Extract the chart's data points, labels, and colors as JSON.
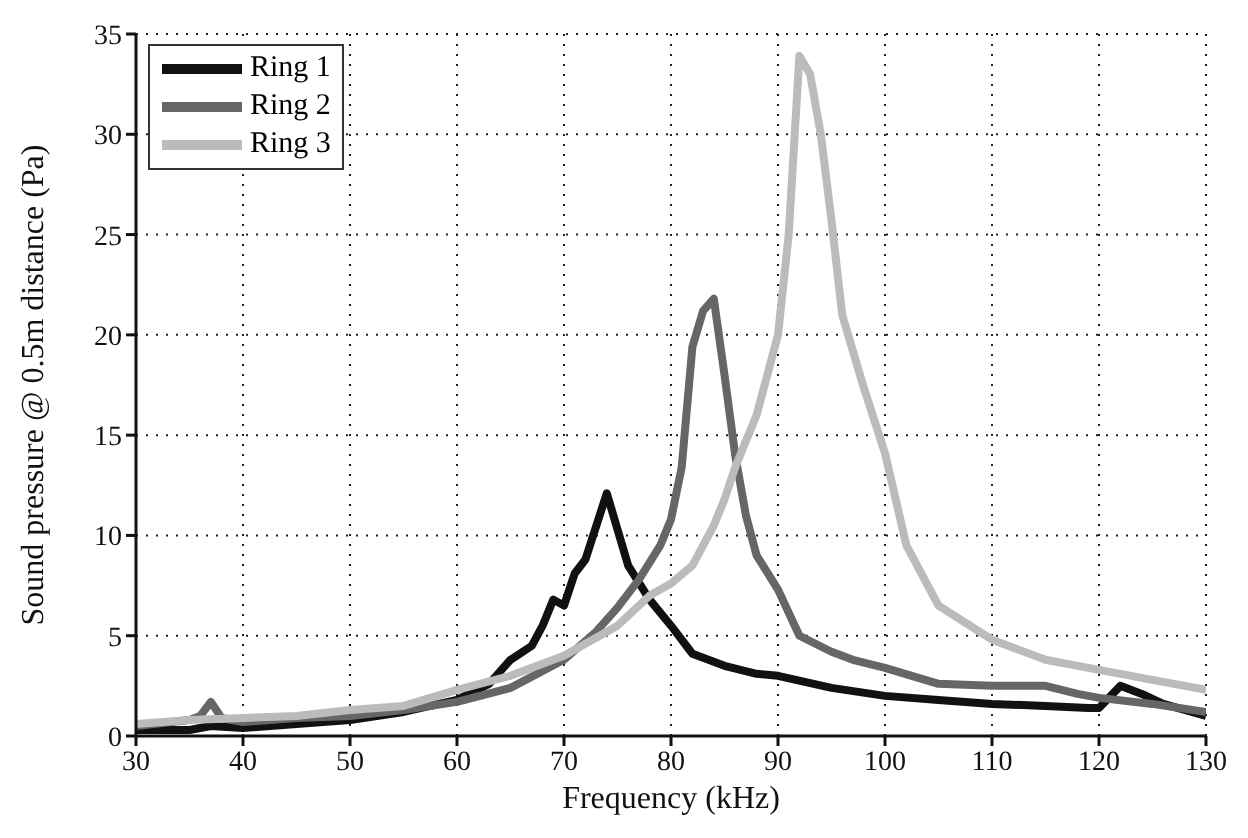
{
  "chart_data": {
    "type": "line",
    "xlabel": "Frequency (kHz)",
    "ylabel": "Sound pressure @ 0.5m distance (Pa)",
    "xlim": [
      30,
      130
    ],
    "ylim": [
      0,
      35
    ],
    "xticks": [
      30,
      40,
      50,
      60,
      70,
      80,
      90,
      100,
      110,
      120,
      130
    ],
    "yticks": [
      0,
      5,
      10,
      15,
      20,
      25,
      30,
      35
    ],
    "grid": true,
    "legend": "top left",
    "line_style": "solid",
    "marker": "none",
    "series": [
      {
        "name": "Ring 1",
        "color": "#111111",
        "x": [
          30,
          35,
          37,
          40,
          45,
          50,
          55,
          60,
          63,
          65,
          67,
          68,
          69,
          70,
          71,
          72,
          74,
          76,
          78,
          80,
          82,
          85,
          88,
          90,
          95,
          100,
          105,
          110,
          115,
          119,
          120,
          122,
          124,
          126,
          130
        ],
        "values": [
          0.3,
          0.3,
          0.5,
          0.4,
          0.6,
          0.8,
          1.2,
          1.8,
          2.6,
          3.8,
          4.5,
          5.5,
          6.8,
          6.5,
          8.1,
          8.8,
          12.1,
          8.5,
          6.8,
          5.5,
          4.1,
          3.5,
          3.1,
          3,
          2.4,
          2,
          1.8,
          1.6,
          1.5,
          1.4,
          1.4,
          2.5,
          2.1,
          1.6,
          1
        ]
      },
      {
        "name": "Ring 2",
        "color": "#666666",
        "x": [
          30,
          35,
          36,
          37,
          38,
          40,
          45,
          50,
          55,
          60,
          65,
          70,
          73,
          75,
          77,
          79,
          80,
          81,
          82,
          83,
          84,
          85,
          86,
          87,
          88,
          90,
          92,
          95,
          97,
          100,
          105,
          110,
          115,
          118,
          120,
          125,
          130
        ],
        "values": [
          0.5,
          0.8,
          1,
          1.7,
          0.9,
          0.7,
          0.9,
          1,
          1.3,
          1.7,
          2.4,
          3.8,
          5.2,
          6.4,
          7.8,
          9.5,
          10.8,
          13.4,
          19.4,
          21.2,
          21.8,
          18,
          14,
          11,
          9,
          7.3,
          5,
          4.2,
          3.8,
          3.4,
          2.6,
          2.5,
          2.5,
          2.1,
          1.9,
          1.6,
          1.2
        ]
      },
      {
        "name": "Ring 3",
        "color": "#bbbbbb",
        "x": [
          30,
          35,
          40,
          45,
          50,
          55,
          60,
          65,
          70,
          75,
          78,
          80,
          82,
          84,
          85,
          86,
          88,
          89,
          90,
          91,
          92,
          93,
          94,
          95,
          96,
          98,
          100,
          102,
          105,
          110,
          115,
          120,
          125,
          130
        ],
        "values": [
          0.6,
          0.8,
          0.9,
          1,
          1.3,
          1.5,
          2.3,
          3,
          4,
          5.5,
          7,
          7.6,
          8.5,
          10.5,
          11.8,
          13.4,
          16,
          18,
          20,
          25,
          33.9,
          33,
          30,
          25.7,
          21,
          17.4,
          14.1,
          9.5,
          6.5,
          4.8,
          3.8,
          3.3,
          2.8,
          2.3
        ]
      }
    ]
  }
}
